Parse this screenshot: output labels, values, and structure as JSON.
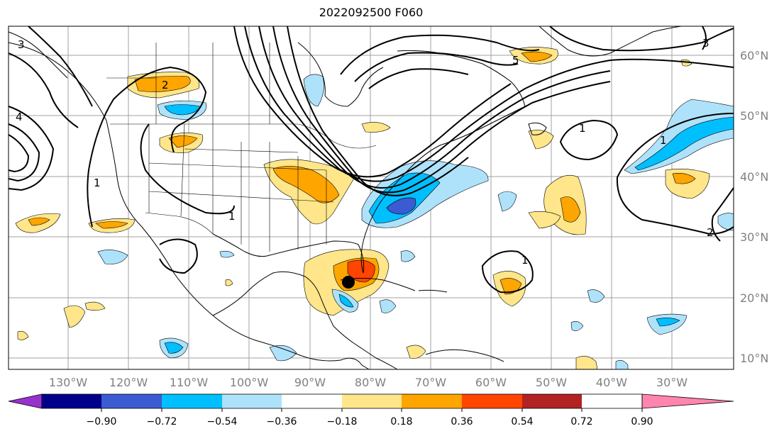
{
  "title": "2022092500 F060",
  "map": {
    "lon_ticks": [
      "130°W",
      "120°W",
      "110°W",
      "100°W",
      "90°W",
      "80°W",
      "70°W",
      "60°W",
      "50°W",
      "40°W",
      "30°W"
    ],
    "lat_ticks": [
      "60°N",
      "50°N",
      "40°N",
      "30°N",
      "20°N",
      "10°N"
    ],
    "contour_labels": [
      "1",
      "1",
      "1",
      "1",
      "1",
      "2",
      "2",
      "3",
      "3",
      "4",
      "5"
    ],
    "storm_marker": "tropical-cyclone-center"
  },
  "colorbar": {
    "labels": [
      "−0.90",
      "−0.72",
      "−0.54",
      "−0.36",
      "−0.18",
      "0.18",
      "0.36",
      "0.54",
      "0.72",
      "0.90"
    ],
    "colors": [
      "#9932cc",
      "#00008b",
      "#3a5bd1",
      "#00bfff",
      "#aee2fb",
      "#ffffff",
      "#ffe68a",
      "#ffa500",
      "#ff4500",
      "#b22222",
      "#ff85b0"
    ]
  },
  "palette": {
    "land_line": "#000000",
    "grid": "#a0a0a0",
    "neg_light": "#aee2fb",
    "neg_mid": "#00bfff",
    "neg_dark": "#3a5bd1",
    "pos_light": "#ffe68a",
    "pos_mid": "#ffa500",
    "pos_dark": "#ff4500"
  }
}
